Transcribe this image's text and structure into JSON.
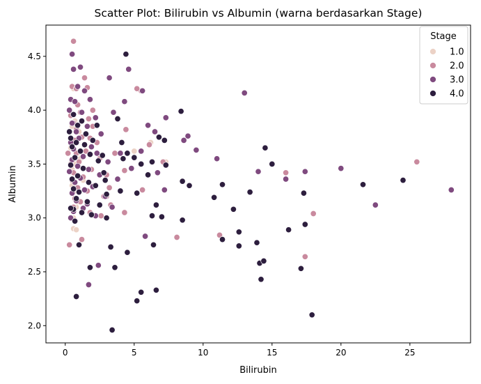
{
  "chart_data": {
    "type": "scatter",
    "title": "Scatter Plot: Bilirubin vs Albumin (warna berdasarkan Stage)",
    "xlabel": "Bilirubin",
    "ylabel": "Albumin",
    "xlim": [
      -1.4,
      29.4
    ],
    "ylim": [
      1.84,
      4.79
    ],
    "xticks": [
      0,
      5,
      10,
      15,
      20,
      25
    ],
    "yticks": [
      2.0,
      2.5,
      3.0,
      3.5,
      4.0,
      4.5
    ],
    "xtick_labels": [
      "0",
      "5",
      "10",
      "15",
      "20",
      "25"
    ],
    "ytick_labels": [
      "2.0",
      "2.5",
      "3.0",
      "3.5",
      "4.0",
      "4.5"
    ],
    "grid": false,
    "legend": {
      "title": "Stage",
      "placement": "top-right",
      "entries": [
        {
          "label": "1.0",
          "color": "#ecd2c6"
        },
        {
          "label": "2.0",
          "color": "#c98a9e"
        },
        {
          "label": "3.0",
          "color": "#7f4a7f"
        },
        {
          "label": "4.0",
          "color": "#2d1e3e"
        }
      ]
    },
    "series": [
      {
        "name": "1.0",
        "color": "#ecd2c6",
        "points": [
          [
            0.6,
            4.2
          ],
          [
            0.7,
            3.9
          ],
          [
            0.8,
            3.7
          ],
          [
            0.7,
            3.5
          ],
          [
            0.5,
            3.3
          ],
          [
            0.8,
            3.1
          ],
          [
            0.6,
            2.9
          ],
          [
            0.9,
            3.6
          ],
          [
            1.0,
            3.8
          ],
          [
            0.5,
            3.45
          ],
          [
            0.7,
            3.25
          ],
          [
            1.1,
            3.55
          ],
          [
            0.6,
            3.0
          ],
          [
            0.4,
            3.65
          ],
          [
            1.3,
            3.35
          ],
          [
            0.8,
            2.89
          ],
          [
            0.9,
            3.15
          ],
          [
            6.2,
            3.7
          ],
          [
            7.3,
            3.52
          ],
          [
            5.0,
            3.62
          ],
          [
            0.5,
            3.85
          ]
        ]
      },
      {
        "name": "2.0",
        "color": "#c98a9e",
        "points": [
          [
            0.6,
            4.64
          ],
          [
            0.3,
            2.75
          ],
          [
            1.2,
            2.8
          ],
          [
            0.5,
            4.22
          ],
          [
            0.8,
            4.2
          ],
          [
            1.4,
            4.3
          ],
          [
            1.6,
            4.21
          ],
          [
            0.9,
            4.05
          ],
          [
            1.1,
            3.98
          ],
          [
            0.4,
            3.95
          ],
          [
            1.7,
            3.92
          ],
          [
            0.6,
            3.88
          ],
          [
            2.0,
            3.85
          ],
          [
            1.2,
            3.75
          ],
          [
            0.7,
            3.72
          ],
          [
            2.3,
            3.7
          ],
          [
            0.5,
            3.68
          ],
          [
            1.5,
            3.62
          ],
          [
            0.8,
            3.6
          ],
          [
            2.5,
            3.55
          ],
          [
            1.0,
            3.52
          ],
          [
            0.4,
            3.5
          ],
          [
            1.9,
            3.45
          ],
          [
            0.6,
            3.42
          ],
          [
            3.0,
            3.4
          ],
          [
            1.3,
            3.38
          ],
          [
            0.5,
            3.35
          ],
          [
            2.1,
            3.3
          ],
          [
            0.9,
            3.28
          ],
          [
            1.6,
            3.25
          ],
          [
            2.8,
            3.2
          ],
          [
            0.7,
            3.18
          ],
          [
            1.1,
            3.15
          ],
          [
            3.3,
            3.12
          ],
          [
            0.6,
            3.1
          ],
          [
            1.8,
            3.05
          ],
          [
            2.6,
            3.02
          ],
          [
            0.4,
            3.0
          ],
          [
            3.6,
            3.6
          ],
          [
            4.4,
            3.82
          ],
          [
            5.5,
            4.18
          ],
          [
            5.2,
            4.2
          ],
          [
            7.1,
            3.52
          ],
          [
            8.1,
            2.82
          ],
          [
            11.2,
            2.84
          ],
          [
            16.0,
            3.42
          ],
          [
            17.4,
            2.64
          ],
          [
            18.0,
            3.04
          ],
          [
            25.5,
            3.52
          ],
          [
            5.6,
            3.26
          ],
          [
            3.2,
            3.28
          ],
          [
            6.1,
            3.68
          ],
          [
            4.3,
            3.05
          ],
          [
            3.0,
            3.2
          ],
          [
            2.0,
            4.0
          ],
          [
            4.3,
            3.44
          ],
          [
            1.8,
            3.74
          ],
          [
            0.2,
            3.6
          ],
          [
            0.8,
            3.82
          ]
        ]
      },
      {
        "name": "3.0",
        "color": "#7f4a7f",
        "points": [
          [
            0.5,
            4.52
          ],
          [
            0.6,
            4.38
          ],
          [
            1.1,
            4.4
          ],
          [
            0.9,
            4.22
          ],
          [
            1.4,
            4.18
          ],
          [
            0.4,
            4.1
          ],
          [
            0.7,
            4.08
          ],
          [
            1.8,
            4.1
          ],
          [
            0.3,
            4.0
          ],
          [
            1.2,
            3.98
          ],
          [
            2.2,
            3.93
          ],
          [
            0.5,
            3.88
          ],
          [
            1.6,
            3.85
          ],
          [
            0.8,
            3.8
          ],
          [
            2.6,
            3.78
          ],
          [
            1.0,
            3.74
          ],
          [
            0.4,
            3.7
          ],
          [
            1.9,
            3.66
          ],
          [
            0.6,
            3.64
          ],
          [
            2.3,
            3.6
          ],
          [
            1.3,
            3.57
          ],
          [
            0.5,
            3.54
          ],
          [
            3.1,
            3.52
          ],
          [
            0.9,
            3.48
          ],
          [
            1.7,
            3.45
          ],
          [
            0.3,
            3.43
          ],
          [
            2.5,
            3.4
          ],
          [
            1.1,
            3.37
          ],
          [
            0.7,
            3.33
          ],
          [
            2.0,
            3.29
          ],
          [
            1.4,
            3.26
          ],
          [
            0.5,
            3.23
          ],
          [
            2.9,
            3.2
          ],
          [
            0.8,
            3.16
          ],
          [
            1.6,
            3.13
          ],
          [
            3.4,
            3.1
          ],
          [
            0.6,
            3.06
          ],
          [
            2.2,
            3.02
          ],
          [
            0.4,
            3.0
          ],
          [
            3.2,
            4.3
          ],
          [
            3.5,
            3.98
          ],
          [
            4.6,
            4.38
          ],
          [
            4.3,
            4.08
          ],
          [
            5.6,
            4.18
          ],
          [
            6.0,
            3.86
          ],
          [
            7.3,
            3.93
          ],
          [
            8.6,
            3.72
          ],
          [
            8.9,
            3.76
          ],
          [
            9.5,
            3.63
          ],
          [
            11.0,
            3.55
          ],
          [
            13.0,
            4.16
          ],
          [
            14.0,
            3.43
          ],
          [
            16.0,
            3.36
          ],
          [
            17.4,
            3.43
          ],
          [
            20.0,
            3.46
          ],
          [
            22.5,
            3.12
          ],
          [
            28.0,
            3.26
          ],
          [
            6.5,
            3.8
          ],
          [
            5.8,
            2.83
          ],
          [
            6.7,
            3.42
          ],
          [
            4.8,
            3.46
          ],
          [
            5.5,
            3.62
          ],
          [
            7.2,
            3.26
          ],
          [
            2.4,
            2.56
          ],
          [
            1.7,
            2.38
          ],
          [
            1.3,
            3.09
          ],
          [
            4.0,
            3.6
          ],
          [
            3.8,
            3.36
          ]
        ]
      },
      {
        "name": "4.0",
        "color": "#2d1e3e",
        "points": [
          [
            0.3,
            3.8
          ],
          [
            0.6,
            3.96
          ],
          [
            0.9,
            3.86
          ],
          [
            1.2,
            3.9
          ],
          [
            0.4,
            3.74
          ],
          [
            1.5,
            3.78
          ],
          [
            0.8,
            3.7
          ],
          [
            2.0,
            3.72
          ],
          [
            0.5,
            3.66
          ],
          [
            1.1,
            3.62
          ],
          [
            1.8,
            3.59
          ],
          [
            0.7,
            3.56
          ],
          [
            2.4,
            3.53
          ],
          [
            0.4,
            3.49
          ],
          [
            1.3,
            3.46
          ],
          [
            2.8,
            3.42
          ],
          [
            0.9,
            3.39
          ],
          [
            0.5,
            3.36
          ],
          [
            1.7,
            3.33
          ],
          [
            2.2,
            3.3
          ],
          [
            0.6,
            3.27
          ],
          [
            1.0,
            3.24
          ],
          [
            3.0,
            3.22
          ],
          [
            0.8,
            3.18
          ],
          [
            1.6,
            3.15
          ],
          [
            2.5,
            3.12
          ],
          [
            0.6,
            3.08
          ],
          [
            1.2,
            3.05
          ],
          [
            1.9,
            3.03
          ],
          [
            0.7,
            2.97
          ],
          [
            0.4,
            3.09
          ],
          [
            1.0,
            2.75
          ],
          [
            0.8,
            2.27
          ],
          [
            1.8,
            2.54
          ],
          [
            3.4,
            1.96
          ],
          [
            3.6,
            2.54
          ],
          [
            3.3,
            2.73
          ],
          [
            4.5,
            2.68
          ],
          [
            5.2,
            2.23
          ],
          [
            5.5,
            2.31
          ],
          [
            6.6,
            2.33
          ],
          [
            6.4,
            2.75
          ],
          [
            6.3,
            3.02
          ],
          [
            6.6,
            3.12
          ],
          [
            7.0,
            3.01
          ],
          [
            4.4,
            4.52
          ],
          [
            4.5,
            3.6
          ],
          [
            5.0,
            3.56
          ],
          [
            5.5,
            3.5
          ],
          [
            6.3,
            3.52
          ],
          [
            6.8,
            3.75
          ],
          [
            7.2,
            3.72
          ],
          [
            8.4,
            3.99
          ],
          [
            9.0,
            3.3
          ],
          [
            8.5,
            2.98
          ],
          [
            8.5,
            3.34
          ],
          [
            10.8,
            3.19
          ],
          [
            11.4,
            3.31
          ],
          [
            11.4,
            2.8
          ],
          [
            12.2,
            3.08
          ],
          [
            12.6,
            2.87
          ],
          [
            12.6,
            2.74
          ],
          [
            13.4,
            3.24
          ],
          [
            13.9,
            2.77
          ],
          [
            14.1,
            2.58
          ],
          [
            14.5,
            3.65
          ],
          [
            14.4,
            2.6
          ],
          [
            14.2,
            2.43
          ],
          [
            15.0,
            3.5
          ],
          [
            16.2,
            2.89
          ],
          [
            17.1,
            2.53
          ],
          [
            17.3,
            3.23
          ],
          [
            17.4,
            2.94
          ],
          [
            17.9,
            2.1
          ],
          [
            21.6,
            3.31
          ],
          [
            24.5,
            3.35
          ],
          [
            2.7,
            3.58
          ],
          [
            3.8,
            3.92
          ],
          [
            4.0,
            3.25
          ],
          [
            4.1,
            3.7
          ],
          [
            2.3,
            3.86
          ],
          [
            3.0,
            3.0
          ],
          [
            5.2,
            3.23
          ],
          [
            4.2,
            3.55
          ],
          [
            1.4,
            3.68
          ],
          [
            2.9,
            3.35
          ],
          [
            6.0,
            3.4
          ],
          [
            7.3,
            3.49
          ]
        ]
      }
    ]
  }
}
